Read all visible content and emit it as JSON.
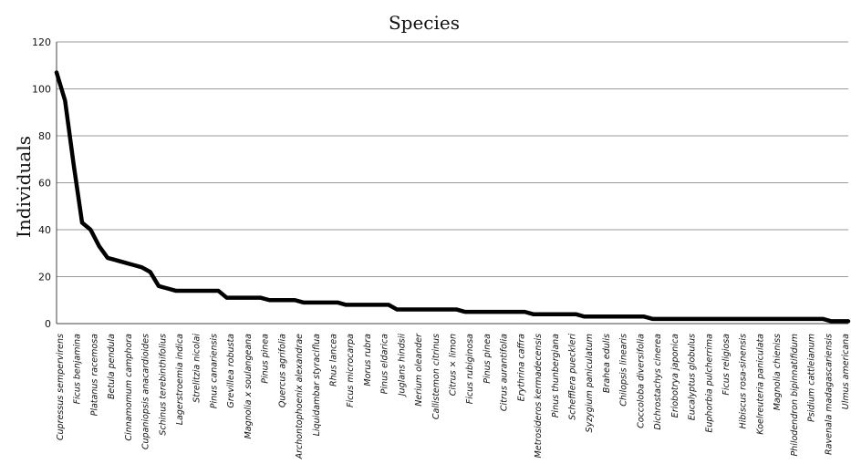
{
  "chart_data": {
    "type": "line",
    "title": "Species",
    "xlabel": "",
    "ylabel": "Individuals",
    "ylim": [
      0,
      120
    ],
    "yticks": [
      0,
      20,
      40,
      60,
      80,
      100,
      120
    ],
    "grid": true,
    "legend": "none",
    "line_color": "#000000",
    "categories": [
      "Cupressus sempervirens",
      "Ficus benjamina",
      "Platanus racemosa",
      "Betula pendula",
      "Cinnamomum camphora",
      "Cupaniopsis anacardioides",
      "Schinus terebinthifolius",
      "Lagerstroemia indica",
      "Strelitzia nicolai",
      "Pinus canariensis",
      "Grevillea robusta",
      "Magnolia x soulangeana",
      "Pinus pinea",
      "Quercus agrifolia",
      "Archontophoenix alexandrae",
      "Liquidambar styraciflua",
      "Rhus lancea",
      "Ficus microcarpa",
      "Morus rubra",
      "Pinus eldarica",
      "Juglans hindsii",
      "Nerium oleander",
      "Callistemon citrinus",
      "Citrus × limon",
      "Ficus rubiginosa",
      "Pinus pinea",
      "Citrus aurantifolia",
      "Erythrina caffra",
      "Metrosideros kermadecensis",
      "Pinus thunbergiana",
      "Schefflera pueckleri",
      "Syzygium paniculatum",
      "Brahea edulis",
      "Chilopsis linearis",
      "Coccoloba diversifolia",
      "Dichrostachys cinerea",
      "Eriobotrya japonica",
      "Eucalyptus globulus",
      "Euphorbia pulcherrima",
      "Ficus religiosa",
      "Hibiscus rosa-sinensis",
      "Koelreuteria paniculata",
      "Magnolia chieniss",
      "Philodendron bipinnatifidum",
      "Psidium cattleianum",
      "Ravenala madagascariensis",
      "Ulmus americana"
    ],
    "x": [
      1,
      2,
      3,
      4,
      5,
      6,
      7,
      8,
      9,
      10,
      11,
      12,
      13,
      14,
      15,
      16,
      17,
      18,
      19,
      20,
      21,
      22,
      23,
      24,
      25,
      26,
      27,
      28,
      29,
      30,
      31,
      32,
      33,
      34,
      35,
      36,
      37,
      38,
      39,
      40,
      41,
      42,
      43,
      44,
      45,
      46,
      47,
      48,
      49,
      50,
      51,
      52,
      53,
      54,
      55,
      56,
      57,
      58,
      59,
      60,
      61,
      62,
      63,
      64,
      65,
      66,
      67,
      68,
      69,
      70,
      71,
      72,
      73,
      74,
      75,
      76,
      77,
      78,
      79,
      80,
      81,
      82,
      83,
      84,
      85,
      86,
      87,
      88,
      89,
      90,
      91,
      92,
      93,
      94
    ],
    "values": [
      107,
      95,
      68,
      43,
      40,
      33,
      28,
      27,
      26,
      25,
      24,
      22,
      16,
      15,
      14,
      14,
      14,
      14,
      14,
      14,
      11,
      11,
      11,
      11,
      11,
      10,
      10,
      10,
      10,
      9,
      9,
      9,
      9,
      9,
      8,
      8,
      8,
      8,
      8,
      8,
      6,
      6,
      6,
      6,
      6,
      6,
      6,
      6,
      5,
      5,
      5,
      5,
      5,
      5,
      5,
      5,
      4,
      4,
      4,
      4,
      4,
      4,
      3,
      3,
      3,
      3,
      3,
      3,
      3,
      3,
      2,
      2,
      2,
      2,
      2,
      2,
      2,
      2,
      2,
      2,
      2,
      2,
      2,
      2,
      2,
      2,
      2,
      2,
      2,
      2,
      2,
      1,
      1,
      1
    ]
  }
}
